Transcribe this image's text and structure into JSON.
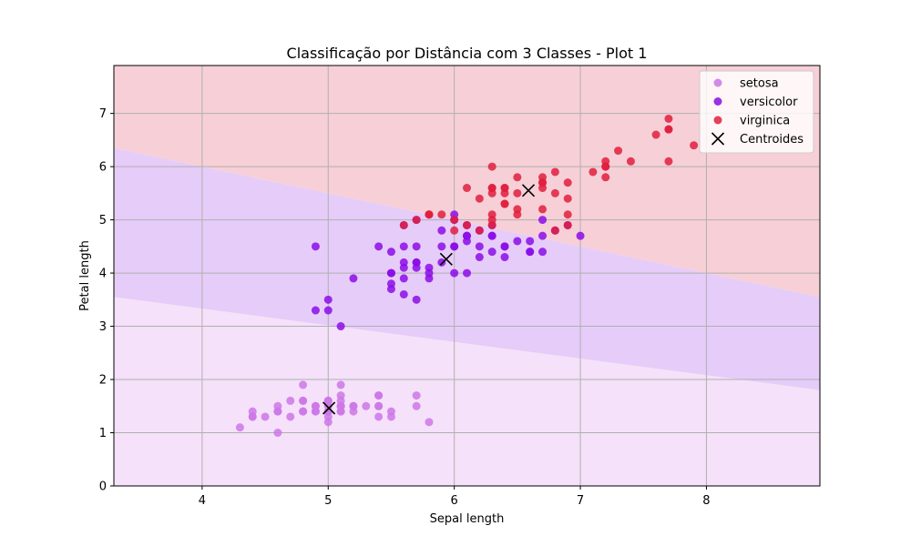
{
  "chart_data": {
    "type": "scatter",
    "title": "Classificação por Distância com 3 Classes - Plot 1",
    "xlabel": "Sepal length",
    "ylabel": "Petal length",
    "xlim": [
      3.3,
      8.9
    ],
    "ylim": [
      0,
      7.9
    ],
    "xticks": [
      4,
      5,
      6,
      7,
      8
    ],
    "yticks": [
      0,
      1,
      2,
      3,
      4,
      5,
      6,
      7
    ],
    "grid": true,
    "legend_position": "top-right",
    "regions": [
      {
        "class": "setosa",
        "color": "#f5e1f9"
      },
      {
        "class": "versicolor",
        "color": "#e6ccf8"
      },
      {
        "class": "virginica",
        "color": "#f7cfd7"
      }
    ],
    "boundaries": [
      {
        "between": [
          "setosa",
          "versicolor"
        ],
        "points": [
          [
            3.3,
            3.55
          ],
          [
            8.9,
            1.8
          ]
        ]
      },
      {
        "between": [
          "versicolor",
          "virginica"
        ],
        "points": [
          [
            3.3,
            6.35
          ],
          [
            8.9,
            3.55
          ]
        ]
      }
    ],
    "series": [
      {
        "name": "setosa",
        "color": "#cc77e8",
        "points": [
          [
            5.1,
            1.4
          ],
          [
            4.9,
            1.4
          ],
          [
            4.7,
            1.3
          ],
          [
            4.6,
            1.5
          ],
          [
            5.0,
            1.4
          ],
          [
            5.4,
            1.7
          ],
          [
            4.6,
            1.4
          ],
          [
            5.0,
            1.5
          ],
          [
            4.4,
            1.4
          ],
          [
            4.9,
            1.5
          ],
          [
            5.4,
            1.5
          ],
          [
            4.8,
            1.6
          ],
          [
            4.8,
            1.4
          ],
          [
            4.3,
            1.1
          ],
          [
            5.8,
            1.2
          ],
          [
            5.7,
            1.5
          ],
          [
            5.4,
            1.3
          ],
          [
            5.1,
            1.4
          ],
          [
            5.7,
            1.7
          ],
          [
            5.1,
            1.5
          ],
          [
            5.4,
            1.7
          ],
          [
            5.1,
            1.5
          ],
          [
            4.6,
            1.0
          ],
          [
            5.1,
            1.7
          ],
          [
            4.8,
            1.9
          ],
          [
            5.0,
            1.6
          ],
          [
            5.0,
            1.6
          ],
          [
            5.2,
            1.5
          ],
          [
            5.2,
            1.4
          ],
          [
            4.7,
            1.6
          ],
          [
            4.8,
            1.6
          ],
          [
            5.4,
            1.5
          ],
          [
            5.2,
            1.5
          ],
          [
            5.5,
            1.4
          ],
          [
            4.9,
            1.5
          ],
          [
            5.0,
            1.2
          ],
          [
            5.5,
            1.3
          ],
          [
            4.9,
            1.4
          ],
          [
            4.4,
            1.3
          ],
          [
            5.1,
            1.5
          ],
          [
            5.0,
            1.3
          ],
          [
            4.5,
            1.3
          ],
          [
            4.4,
            1.3
          ],
          [
            5.0,
            1.6
          ],
          [
            5.1,
            1.9
          ],
          [
            4.8,
            1.4
          ],
          [
            5.1,
            1.6
          ],
          [
            4.6,
            1.4
          ],
          [
            5.3,
            1.5
          ],
          [
            5.0,
            1.4
          ]
        ]
      },
      {
        "name": "versicolor",
        "color": "#8b0de6",
        "points": [
          [
            7.0,
            4.7
          ],
          [
            6.4,
            4.5
          ],
          [
            6.9,
            4.9
          ],
          [
            5.5,
            4.0
          ],
          [
            6.5,
            4.6
          ],
          [
            5.7,
            4.5
          ],
          [
            6.3,
            4.7
          ],
          [
            4.9,
            3.3
          ],
          [
            6.6,
            4.6
          ],
          [
            5.2,
            3.9
          ],
          [
            5.0,
            3.5
          ],
          [
            5.9,
            4.2
          ],
          [
            6.0,
            4.0
          ],
          [
            6.1,
            4.7
          ],
          [
            5.6,
            3.6
          ],
          [
            6.7,
            4.4
          ],
          [
            5.6,
            4.5
          ],
          [
            5.8,
            4.1
          ],
          [
            6.2,
            4.5
          ],
          [
            5.6,
            3.9
          ],
          [
            5.9,
            4.8
          ],
          [
            6.1,
            4.0
          ],
          [
            6.3,
            4.9
          ],
          [
            6.1,
            4.7
          ],
          [
            6.4,
            4.3
          ],
          [
            6.6,
            4.4
          ],
          [
            6.8,
            4.8
          ],
          [
            6.7,
            5.0
          ],
          [
            6.0,
            4.5
          ],
          [
            5.7,
            3.5
          ],
          [
            5.5,
            3.8
          ],
          [
            5.5,
            3.7
          ],
          [
            5.8,
            3.9
          ],
          [
            6.0,
            5.1
          ],
          [
            5.4,
            4.5
          ],
          [
            6.0,
            4.5
          ],
          [
            6.7,
            4.7
          ],
          [
            6.3,
            4.4
          ],
          [
            5.6,
            4.1
          ],
          [
            5.5,
            4.0
          ],
          [
            5.5,
            4.4
          ],
          [
            6.1,
            4.6
          ],
          [
            5.8,
            4.0
          ],
          [
            5.0,
            3.3
          ],
          [
            5.6,
            4.2
          ],
          [
            5.7,
            4.2
          ],
          [
            5.7,
            4.2
          ],
          [
            6.2,
            4.3
          ],
          [
            5.1,
            3.0
          ],
          [
            5.7,
            4.1
          ],
          [
            4.9,
            4.5
          ],
          [
            6.0,
            5.0
          ],
          [
            5.7,
            5.0
          ],
          [
            5.6,
            4.9
          ],
          [
            6.6,
            4.4
          ],
          [
            6.2,
            4.8
          ],
          [
            6.3,
            4.7
          ],
          [
            6.1,
            4.9
          ],
          [
            5.9,
            4.5
          ],
          [
            6.4,
            4.5
          ]
        ]
      },
      {
        "name": "virginica",
        "color": "#e01f3d",
        "points": [
          [
            6.3,
            6.0
          ],
          [
            5.8,
            5.1
          ],
          [
            7.1,
            5.9
          ],
          [
            6.3,
            5.6
          ],
          [
            6.5,
            5.8
          ],
          [
            7.6,
            6.6
          ],
          [
            7.3,
            6.3
          ],
          [
            6.7,
            5.8
          ],
          [
            7.2,
            6.1
          ],
          [
            6.5,
            5.1
          ],
          [
            6.4,
            5.3
          ],
          [
            6.8,
            5.5
          ],
          [
            5.7,
            5.0
          ],
          [
            5.8,
            5.1
          ],
          [
            6.4,
            5.3
          ],
          [
            6.5,
            5.5
          ],
          [
            7.7,
            6.7
          ],
          [
            7.7,
            6.9
          ],
          [
            6.0,
            5.0
          ],
          [
            6.9,
            5.7
          ],
          [
            5.6,
            4.9
          ],
          [
            7.7,
            6.7
          ],
          [
            6.3,
            4.9
          ],
          [
            6.7,
            5.7
          ],
          [
            7.2,
            6.0
          ],
          [
            6.2,
            4.8
          ],
          [
            6.1,
            4.9
          ],
          [
            6.4,
            5.6
          ],
          [
            7.2,
            5.8
          ],
          [
            7.4,
            6.1
          ],
          [
            7.9,
            6.4
          ],
          [
            6.4,
            5.6
          ],
          [
            6.3,
            5.1
          ],
          [
            6.1,
            5.6
          ],
          [
            7.7,
            6.1
          ],
          [
            6.3,
            5.6
          ],
          [
            6.4,
            5.5
          ],
          [
            6.0,
            4.8
          ],
          [
            6.9,
            5.4
          ],
          [
            6.7,
            5.6
          ],
          [
            6.9,
            5.1
          ],
          [
            5.8,
            5.1
          ],
          [
            6.8,
            5.9
          ],
          [
            6.7,
            5.7
          ],
          [
            6.7,
            5.2
          ],
          [
            6.3,
            5.0
          ],
          [
            6.5,
            5.2
          ],
          [
            6.2,
            5.4
          ],
          [
            5.9,
            5.1
          ],
          [
            6.9,
            4.9
          ],
          [
            6.3,
            5.5
          ],
          [
            7.2,
            6.0
          ],
          [
            6.8,
            4.8
          ]
        ]
      }
    ],
    "centroids": {
      "name": "Centroides",
      "color": "#000000",
      "points": [
        [
          5.006,
          1.462
        ],
        [
          5.936,
          4.26
        ],
        [
          6.588,
          5.552
        ]
      ]
    }
  }
}
